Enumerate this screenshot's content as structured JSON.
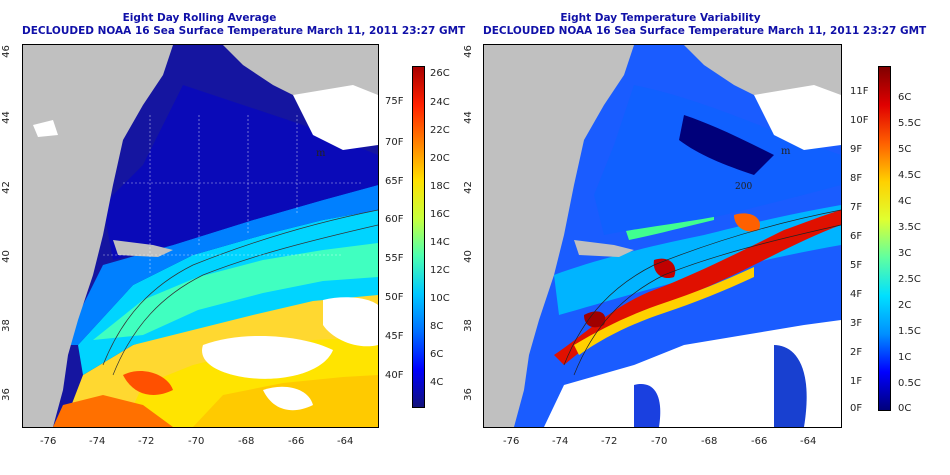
{
  "left": {
    "title_line1": "Eight Day Rolling Average",
    "title_line2": "DECLOUDED NOAA 16 Sea Surface Temperature March 11, 2011 23:27 GMT",
    "x_ticks": [
      "-76",
      "-74",
      "-72",
      "-70",
      "-68",
      "-66",
      "-64"
    ],
    "y_ticks": [
      "46",
      "44",
      "42",
      "40",
      "38",
      "36"
    ],
    "inner_f_labels": [
      "75F",
      "70F",
      "65F",
      "60F",
      "55F",
      "50F",
      "45F",
      "40F"
    ],
    "colorbar_c_labels": [
      "26C",
      "24C",
      "22C",
      "20C",
      "18C",
      "16C",
      "14C",
      "12C",
      "10C",
      "8C",
      "6C",
      "4C"
    ],
    "colors": [
      "#12127a",
      "#0000ff",
      "#0070ff",
      "#00c8ff",
      "#4cffb0",
      "#c8ff3c",
      "#ffe000",
      "#ff8000",
      "#ff2000",
      "#b00000"
    ]
  },
  "right": {
    "title_line1": "Eight Day Temperature Variability",
    "title_line2": "DECLOUDED NOAA 16 Sea Surface Temperature March 11, 2011 23:27 GMT",
    "x_ticks": [
      "-76",
      "-74",
      "-72",
      "-70",
      "-68",
      "-66",
      "-64"
    ],
    "y_ticks": [
      "46",
      "44",
      "42",
      "40",
      "38",
      "36"
    ],
    "inner_f_labels": [
      "11F",
      "10F",
      "9F",
      "8F",
      "7F",
      "6F",
      "5F",
      "4F",
      "3F",
      "2F",
      "1F",
      "0F"
    ],
    "colorbar_c_labels": [
      "6C",
      "5.5C",
      "5C",
      "4.5C",
      "4C",
      "3.5C",
      "3C",
      "2.5C",
      "2C",
      "1.5C",
      "1C",
      "0.5C",
      "0C"
    ],
    "colors": [
      "#00007a",
      "#0000ff",
      "#0090ff",
      "#00e0ff",
      "#60ffa0",
      "#e0ff30",
      "#ffd000",
      "#ff6000",
      "#e00000",
      "#800000"
    ]
  },
  "map_features": {
    "isobath_labels": [
      "m",
      "200",
      "m"
    ],
    "land_color": "#c0c0c0",
    "cloud_color": "#ffffff"
  }
}
